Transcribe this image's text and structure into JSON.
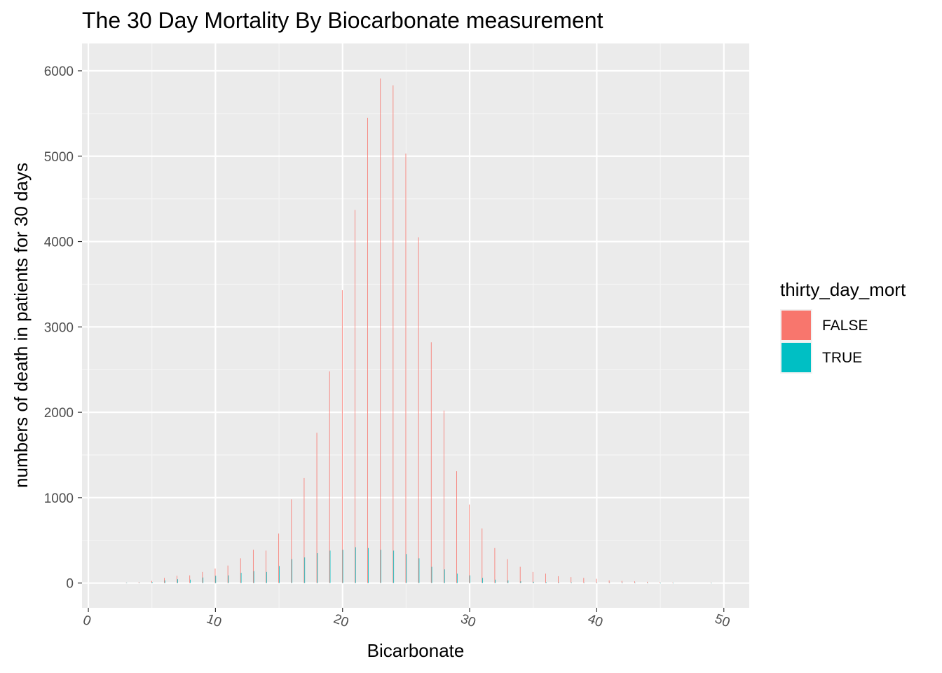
{
  "chart_data": {
    "type": "bar",
    "title": "The 30 Day Mortality By Biocarbonate measurement",
    "xlabel": "Bicarbonate",
    "ylabel": "numbers of death in patients for 30 days",
    "xlim": [
      -0.5,
      52
    ],
    "ylim": [
      -290,
      6320
    ],
    "x_ticks": [
      0,
      10,
      20,
      30,
      40,
      50
    ],
    "y_ticks": [
      0,
      1000,
      2000,
      3000,
      4000,
      5000,
      6000
    ],
    "grid": true,
    "legend": {
      "title": "thirty_day_mort",
      "position": "right"
    },
    "x": [
      3,
      4,
      5,
      6,
      7,
      8,
      9,
      10,
      11,
      12,
      13,
      14,
      15,
      16,
      17,
      18,
      19,
      20,
      21,
      22,
      23,
      24,
      25,
      26,
      27,
      28,
      29,
      30,
      31,
      32,
      33,
      34,
      35,
      36,
      37,
      38,
      39,
      40,
      41,
      42,
      43,
      44,
      45,
      46,
      49
    ],
    "series": [
      {
        "name": "FALSE",
        "color": "#F8766D",
        "values": [
          5,
          10,
          25,
          60,
          85,
          90,
          130,
          170,
          205,
          290,
          390,
          380,
          580,
          980,
          1230,
          1760,
          2480,
          3430,
          4370,
          5450,
          5910,
          5830,
          5030,
          4050,
          2820,
          2020,
          1310,
          920,
          640,
          410,
          280,
          190,
          130,
          110,
          80,
          70,
          60,
          50,
          30,
          25,
          20,
          15,
          10,
          5,
          5
        ]
      },
      {
        "name": "TRUE",
        "color": "#00BFC4",
        "values": [
          2,
          5,
          12,
          30,
          45,
          40,
          65,
          85,
          90,
          120,
          140,
          130,
          200,
          280,
          300,
          350,
          380,
          390,
          420,
          410,
          390,
          380,
          340,
          290,
          190,
          160,
          110,
          90,
          60,
          40,
          30,
          20,
          15,
          10,
          8,
          6,
          5,
          4,
          3,
          2,
          2,
          1,
          1,
          1,
          1
        ]
      }
    ]
  }
}
